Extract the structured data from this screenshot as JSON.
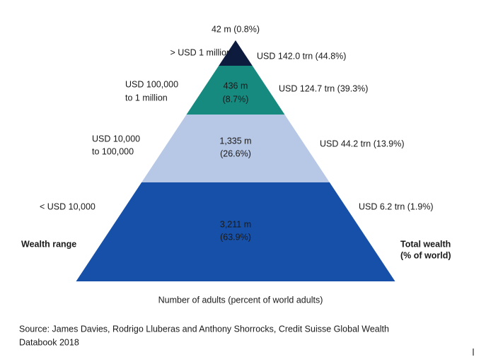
{
  "levels": [
    {
      "range": [
        "> USD 1 million"
      ],
      "adults": [
        "42 m (0.8%)"
      ],
      "wealth": "USD 142.0 trn (44.8%)"
    },
    {
      "range": [
        "USD 100,000",
        "to 1 million"
      ],
      "adults": [
        "436 m",
        "(8.7%)"
      ],
      "wealth": "USD 124.7 trn (39.3%)"
    },
    {
      "range": [
        "USD 10,000",
        "to 100,000"
      ],
      "adults": [
        "1,335 m",
        "(26.6%)"
      ],
      "wealth": "USD 44.2 trn (13.9%)"
    },
    {
      "range": [
        "< USD 10,000"
      ],
      "adults": [
        "3,211 m",
        "(63.9%)"
      ],
      "wealth": "USD 6.2 trn (1.9%)"
    }
  ],
  "left_heading": "Wealth range",
  "right_heading": [
    "Total wealth",
    "(% of world)"
  ],
  "bottom_label": "Number of adults (percent of world adults)",
  "source": [
    "Source: James Davies, Rodrigo Lluberas and Anthony Shorrocks, Credit Suisse Global Wealth",
    "Databook 2018"
  ]
}
